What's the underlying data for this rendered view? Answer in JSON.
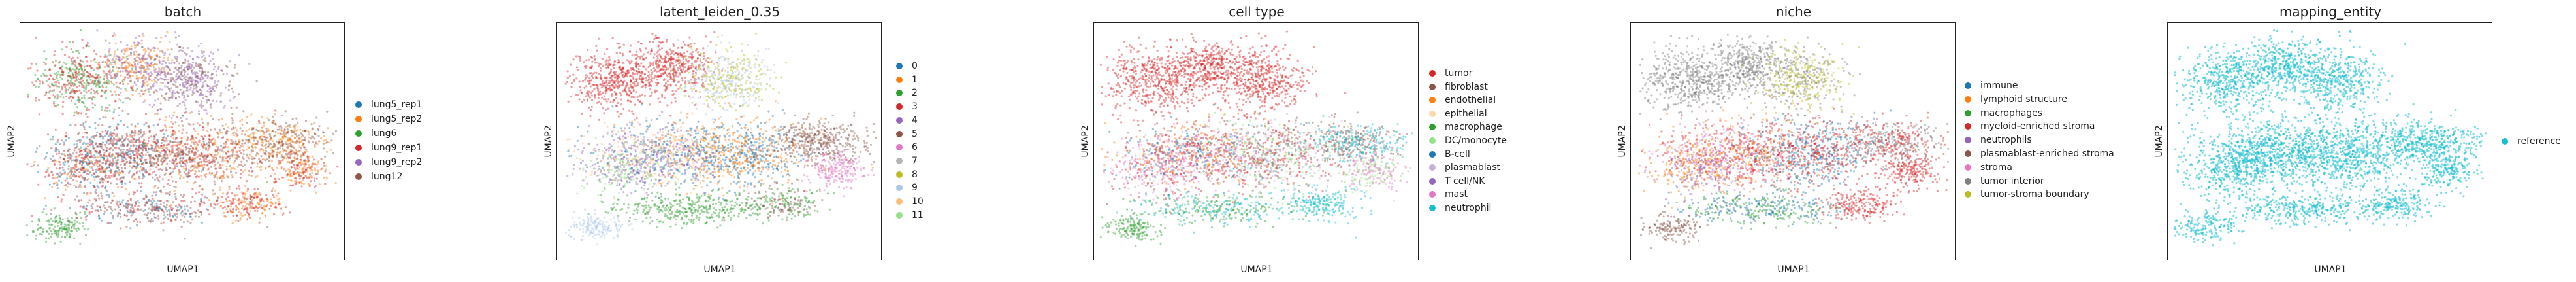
{
  "chart_data": [
    {
      "type": "scatter",
      "title": "batch",
      "xlabel": "UMAP1",
      "ylabel": "UMAP2",
      "grid": false,
      "legend_position": "right",
      "series": [
        {
          "name": "lung5_rep1",
          "color": "#1f77b4"
        },
        {
          "name": "lung5_rep2",
          "color": "#ff7f0e"
        },
        {
          "name": "lung6",
          "color": "#2ca02c"
        },
        {
          "name": "lung9_rep1",
          "color": "#d62728"
        },
        {
          "name": "lung9_rep2",
          "color": "#9467bd"
        },
        {
          "name": "lung12",
          "color": "#8c564b"
        }
      ]
    },
    {
      "type": "scatter",
      "title": "latent_leiden_0.35",
      "xlabel": "UMAP1",
      "ylabel": "UMAP2",
      "grid": false,
      "legend_position": "right",
      "series": [
        {
          "name": "0",
          "color": "#1f77b4"
        },
        {
          "name": "1",
          "color": "#ff7f0e"
        },
        {
          "name": "2",
          "color": "#2ca02c"
        },
        {
          "name": "3",
          "color": "#d62728"
        },
        {
          "name": "4",
          "color": "#9467bd"
        },
        {
          "name": "5",
          "color": "#8c564b"
        },
        {
          "name": "6",
          "color": "#e377c2"
        },
        {
          "name": "7",
          "color": "#b5b5b5"
        },
        {
          "name": "8",
          "color": "#bcbd22"
        },
        {
          "name": "9",
          "color": "#aec7e8"
        },
        {
          "name": "10",
          "color": "#ffbb78"
        },
        {
          "name": "11",
          "color": "#98df8a"
        }
      ]
    },
    {
      "type": "scatter",
      "title": "cell type",
      "xlabel": "UMAP1",
      "ylabel": "UMAP2",
      "grid": false,
      "legend_position": "right",
      "series": [
        {
          "name": "tumor",
          "color": "#d62728"
        },
        {
          "name": "fibroblast",
          "color": "#8c564b"
        },
        {
          "name": "endothelial",
          "color": "#ff7f0e"
        },
        {
          "name": "epithelial",
          "color": "#ffd8a8"
        },
        {
          "name": "macrophage",
          "color": "#2ca02c"
        },
        {
          "name": "DC/monocyte",
          "color": "#98df8a"
        },
        {
          "name": "B-cell",
          "color": "#1f77b4"
        },
        {
          "name": "plasmablast",
          "color": "#c5b0d5"
        },
        {
          "name": "T cell/NK",
          "color": "#9467bd"
        },
        {
          "name": "mast",
          "color": "#e377c2"
        },
        {
          "name": "neutrophil",
          "color": "#17becf"
        }
      ]
    },
    {
      "type": "scatter",
      "title": "niche",
      "xlabel": "UMAP1",
      "ylabel": "UMAP2",
      "grid": false,
      "legend_position": "right",
      "series": [
        {
          "name": "immune",
          "color": "#1f77b4"
        },
        {
          "name": "lymphoid structure",
          "color": "#ff7f0e"
        },
        {
          "name": "macrophages",
          "color": "#2ca02c"
        },
        {
          "name": "myeloid-enriched stroma",
          "color": "#d62728"
        },
        {
          "name": "neutrophils",
          "color": "#9467bd"
        },
        {
          "name": "plasmablast-enriched stroma",
          "color": "#8c564b"
        },
        {
          "name": "stroma",
          "color": "#e377c2"
        },
        {
          "name": "tumor interior",
          "color": "#7f7f7f"
        },
        {
          "name": "tumor-stroma boundary",
          "color": "#bcbd22"
        }
      ]
    },
    {
      "type": "scatter",
      "title": "mapping_entity",
      "xlabel": "UMAP1",
      "ylabel": "UMAP2",
      "grid": false,
      "legend_position": "right",
      "series": [
        {
          "name": "reference",
          "color": "#17becf"
        }
      ]
    }
  ]
}
